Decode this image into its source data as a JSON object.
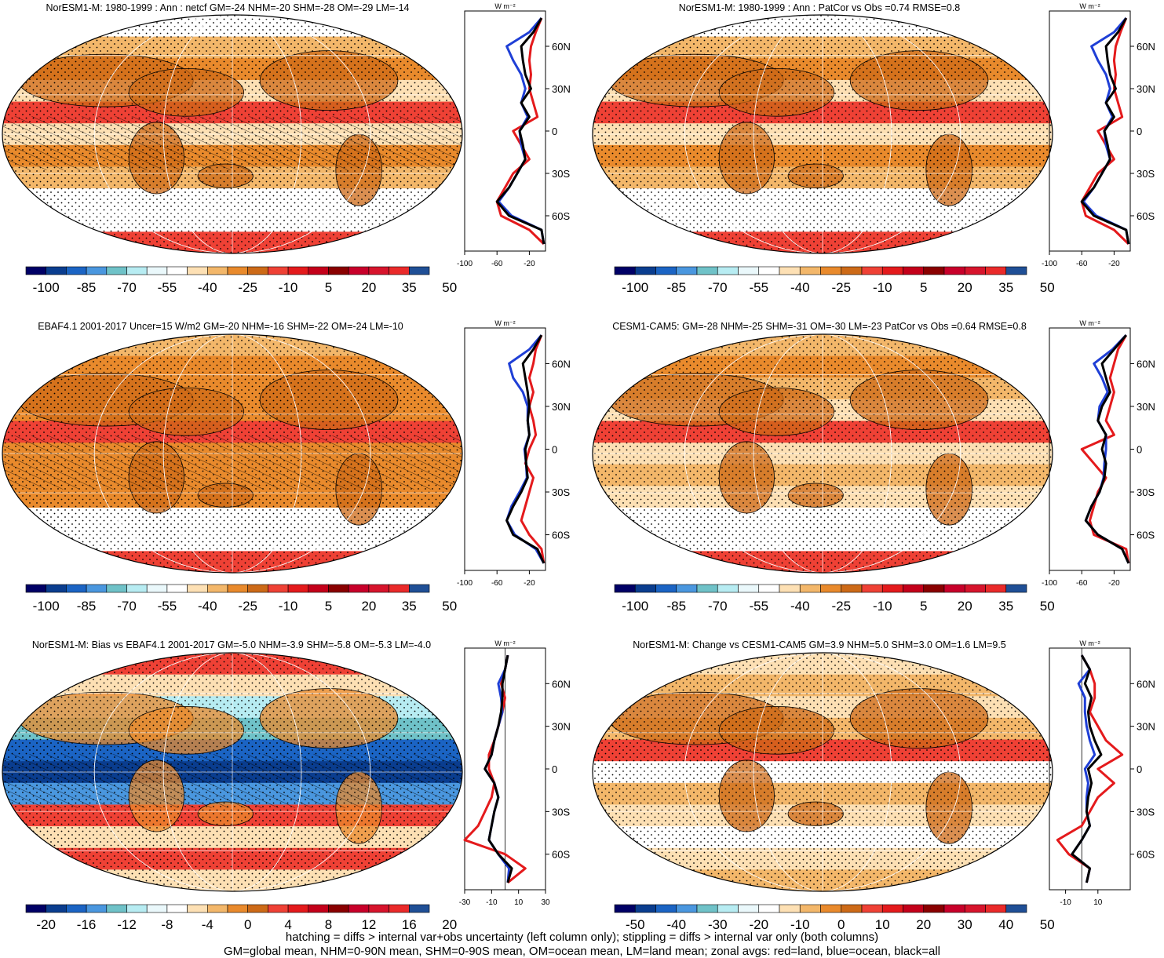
{
  "footnote": {
    "line1": "hatching = diffs > internal var+obs uncertainty (left column only); stippling = diffs > internal var only (both columns)",
    "line2": "GM=global mean, NHM=0-90N mean, SHM=0-90S mean, OM=ocean mean, LM=land mean; zonal avgs: red=land, blue=ocean, black=all"
  },
  "colors": {
    "land": "#e41a1c",
    "ocean": "#1f3fd6",
    "all": "#000000"
  },
  "chart_data": [
    {
      "type": "heatmap",
      "title": "NorESM1-M: 1980-1999 : Ann : netcf GM=-24 NHM=-20 SHM=-28 OM=-29 LM=-14",
      "colorbar_labels": [
        "-100",
        "-85",
        "-70",
        "-55",
        "-40",
        "-25",
        "-10",
        "5",
        "20",
        "35",
        "50"
      ],
      "colorbar_range": [
        -100,
        55
      ],
      "hatching": true,
      "stippling": true,
      "zonal": {
        "unit": "W m⁻²",
        "lat_labels": [
          "60N",
          "30N",
          "0",
          "30S",
          "60S"
        ],
        "x_tick_labels": [
          "-100",
          "-60",
          "-20"
        ],
        "xlim": [
          -100,
          0
        ],
        "lat": [
          80,
          70,
          60,
          50,
          40,
          30,
          20,
          10,
          0,
          -10,
          -20,
          -30,
          -40,
          -50,
          -60,
          -70,
          -80
        ],
        "all": [
          -5,
          -15,
          -30,
          -28,
          -25,
          -18,
          -30,
          -20,
          -32,
          -28,
          -25,
          -35,
          -45,
          -60,
          -45,
          -5,
          -2
        ],
        "land": [
          -5,
          -12,
          -18,
          -20,
          -18,
          -20,
          -15,
          -10,
          -40,
          -30,
          -20,
          -40,
          -50,
          -60,
          -55,
          -20,
          -2
        ],
        "ocean": [
          -5,
          -20,
          -48,
          -40,
          -30,
          -25,
          -30,
          -22,
          -32,
          -30,
          -25,
          -35,
          -45,
          -58,
          -42,
          -5,
          -2
        ]
      }
    },
    {
      "type": "heatmap",
      "title": "NorESM1-M: 1980-1999 : Ann : PatCor vs Obs =0.74 RMSE=0.8",
      "colorbar_labels": [
        "-100",
        "-85",
        "-70",
        "-55",
        "-40",
        "-25",
        "-10",
        "5",
        "20",
        "35",
        "50"
      ],
      "colorbar_range": [
        -100,
        55
      ],
      "hatching": false,
      "stippling": true,
      "zonal": {
        "unit": "W m⁻²",
        "lat_labels": [
          "60N",
          "30N",
          "0",
          "30S",
          "60S"
        ],
        "x_tick_labels": [
          "-100",
          "-60",
          "-20"
        ],
        "xlim": [
          -100,
          0
        ],
        "lat": [
          80,
          70,
          60,
          50,
          40,
          30,
          20,
          10,
          0,
          -10,
          -20,
          -30,
          -40,
          -50,
          -60,
          -70,
          -80
        ],
        "all": [
          -5,
          -15,
          -30,
          -28,
          -25,
          -18,
          -30,
          -20,
          -32,
          -28,
          -25,
          -35,
          -45,
          -60,
          -45,
          -5,
          -2
        ],
        "land": [
          -5,
          -12,
          -18,
          -20,
          -18,
          -20,
          -15,
          -10,
          -40,
          -30,
          -20,
          -40,
          -50,
          -60,
          -55,
          -20,
          -2
        ],
        "ocean": [
          -5,
          -20,
          -48,
          -40,
          -30,
          -25,
          -30,
          -22,
          -32,
          -30,
          -25,
          -35,
          -45,
          -58,
          -42,
          -5,
          -2
        ]
      }
    },
    {
      "type": "heatmap",
      "title": "EBAF4.1 2001-2017 Uncer=15 W/m2 GM=-20 NHM=-16 SHM=-22 OM=-24 LM=-10",
      "colorbar_labels": [
        "-100",
        "-85",
        "-70",
        "-55",
        "-40",
        "-25",
        "-10",
        "5",
        "20",
        "35",
        "50"
      ],
      "colorbar_range": [
        -100,
        55
      ],
      "hatching": true,
      "stippling": true,
      "zonal": {
        "unit": "W m⁻²",
        "lat_labels": [
          "60N",
          "30N",
          "0",
          "30S",
          "60S"
        ],
        "x_tick_labels": [
          "-100",
          "-60",
          "-20"
        ],
        "xlim": [
          -100,
          0
        ],
        "lat": [
          80,
          70,
          60,
          50,
          40,
          30,
          20,
          10,
          0,
          -10,
          -20,
          -30,
          -40,
          -50,
          -60,
          -70,
          -80
        ],
        "all": [
          -5,
          -15,
          -28,
          -25,
          -22,
          -20,
          -22,
          -20,
          -25,
          -24,
          -22,
          -30,
          -40,
          -48,
          -40,
          -10,
          -2
        ],
        "land": [
          -5,
          -12,
          -15,
          -20,
          -15,
          -20,
          -15,
          -12,
          -20,
          -25,
          -15,
          -20,
          -25,
          -30,
          -20,
          -5,
          -2
        ],
        "ocean": [
          -5,
          -20,
          -45,
          -40,
          -28,
          -22,
          -22,
          -20,
          -26,
          -24,
          -23,
          -32,
          -42,
          -48,
          -38,
          -12,
          -2
        ]
      }
    },
    {
      "type": "heatmap",
      "title": "CESM1-CAM5: GM=-28 NHM=-25 SHM=-31 OM=-30 LM=-23 PatCor vs Obs =0.64 RMSE=0.8",
      "colorbar_labels": [
        "-100",
        "-85",
        "-70",
        "-55",
        "-40",
        "-25",
        "-10",
        "5",
        "20",
        "35",
        "50"
      ],
      "colorbar_range": [
        -100,
        55
      ],
      "hatching": false,
      "stippling": true,
      "zonal": {
        "unit": "W m⁻²",
        "lat_labels": [
          "60N",
          "30N",
          "0",
          "30S",
          "60S"
        ],
        "x_tick_labels": [
          "-100",
          "-60",
          "-20"
        ],
        "xlim": [
          -100,
          0
        ],
        "lat": [
          80,
          70,
          60,
          50,
          40,
          30,
          20,
          10,
          0,
          -10,
          -20,
          -30,
          -40,
          -50,
          -60,
          -70,
          -80
        ],
        "all": [
          -5,
          -20,
          -35,
          -30,
          -25,
          -35,
          -40,
          -30,
          -35,
          -30,
          -32,
          -38,
          -48,
          -55,
          -40,
          -10,
          -2
        ],
        "land": [
          -5,
          -15,
          -20,
          -25,
          -20,
          -25,
          -30,
          -20,
          -60,
          -45,
          -30,
          -40,
          -45,
          -50,
          -45,
          -5,
          -2
        ],
        "ocean": [
          -5,
          -22,
          -45,
          -35,
          -28,
          -38,
          -40,
          -30,
          -30,
          -32,
          -33,
          -38,
          -48,
          -55,
          -40,
          -10,
          -2
        ]
      }
    },
    {
      "type": "heatmap",
      "title": "NorESM1-M: Bias vs EBAF4.1 2001-2017 GM=-5.0 NHM=-3.9 SHM=-5.8 OM=-5.3 LM=-4.0",
      "colorbar_labels": [
        "-20",
        "-16",
        "-12",
        "-8",
        "-4",
        "0",
        "4",
        "8",
        "12",
        "16",
        "20"
      ],
      "colorbar_range": [
        -20,
        22
      ],
      "hatching": true,
      "stippling": true,
      "zonal": {
        "unit": "W m⁻²",
        "lat_labels": [
          "60N",
          "30N",
          "0",
          "30S",
          "60S"
        ],
        "x_tick_labels": [
          "-30",
          "-10",
          "10",
          "30"
        ],
        "xlim": [
          -30,
          30
        ],
        "lat": [
          80,
          70,
          60,
          50,
          40,
          30,
          20,
          10,
          0,
          -10,
          -20,
          -30,
          -40,
          -50,
          -60,
          -70,
          -80
        ],
        "all": [
          2,
          0,
          -2,
          -2,
          -3,
          -5,
          -8,
          -10,
          -15,
          -8,
          -5,
          -8,
          -10,
          -12,
          -5,
          5,
          2
        ],
        "land": [
          2,
          0,
          -3,
          0,
          -2,
          -5,
          -8,
          -12,
          -12,
          -8,
          -10,
          -15,
          -20,
          -30,
          0,
          15,
          2
        ],
        "ocean": [
          2,
          0,
          -5,
          -3,
          -2,
          -5,
          -8,
          -10,
          -15,
          -8,
          -5,
          -8,
          -10,
          -12,
          -5,
          3,
          2
        ]
      }
    },
    {
      "type": "heatmap",
      "title": "NorESM1-M: Change vs CESM1-CAM5 GM=3.9 NHM=5.0 SHM=3.0 OM=1.6 LM=9.5",
      "colorbar_labels": [
        "-50",
        "-40",
        "-30",
        "-20",
        "-10",
        "0",
        "10",
        "20",
        "30",
        "40",
        "50"
      ],
      "colorbar_range": [
        -50,
        55
      ],
      "hatching": false,
      "stippling": true,
      "zonal": {
        "unit": "W m⁻²",
        "lat_labels": [
          "60N",
          "30N",
          "0",
          "30S",
          "60S"
        ],
        "x_tick_labels": [
          "-10",
          "10"
        ],
        "xlim": [
          -20,
          30
        ],
        "lat": [
          80,
          70,
          60,
          50,
          40,
          30,
          20,
          10,
          0,
          -10,
          -20,
          -30,
          -40,
          -50,
          -60,
          -70,
          -80
        ],
        "all": [
          0,
          5,
          2,
          6,
          4,
          5,
          8,
          12,
          4,
          6,
          4,
          3,
          5,
          0,
          -6,
          5,
          3
        ],
        "land": [
          0,
          5,
          8,
          8,
          5,
          10,
          15,
          25,
          10,
          20,
          10,
          5,
          0,
          -15,
          -8,
          5,
          3
        ],
        "ocean": [
          0,
          5,
          -2,
          2,
          2,
          3,
          5,
          8,
          2,
          4,
          3,
          3,
          5,
          0,
          -6,
          5,
          3
        ]
      }
    }
  ]
}
